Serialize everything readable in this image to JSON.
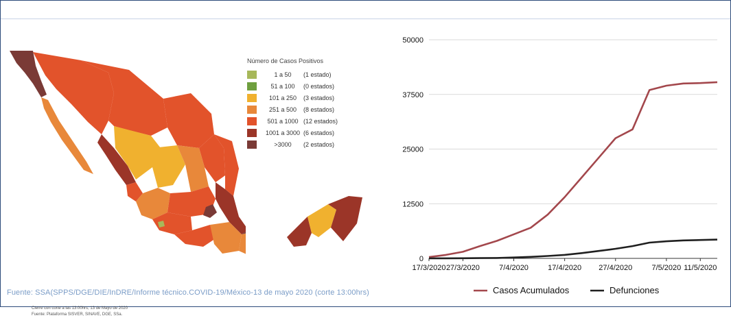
{
  "map": {
    "legend_title": "Número de Casos Positivos",
    "legend": [
      {
        "range": "1 a 50",
        "count": "(1 estado)",
        "color": "#a7b85a"
      },
      {
        "range": "51 a 100",
        "count": "(0 estados)",
        "color": "#6f9f3f"
      },
      {
        "range": "101 a 250",
        "count": "(3 estados)",
        "color": "#f0b12f"
      },
      {
        "range": "251 a 500",
        "count": "(8 estados)",
        "color": "#e8883a"
      },
      {
        "range": "501 a 1000",
        "count": "(12 estados)",
        "color": "#e2532b"
      },
      {
        "range": "1001 a 3000",
        "count": "(6 estados)",
        "color": "#9b3528"
      },
      {
        "range": ">3000",
        "count": "(2 estados)",
        "color": "#7a3a36"
      }
    ],
    "note_cut": "Cierre con corte a las 13:00hrs, 13 de Mayo de 2020",
    "note_source": "Fuente: Plataforma SISVER, SINAVE, DGE, SSa."
  },
  "source_line": "Fuente: SSA(SPPS/DGE/DIE/InDRE/Informe técnico.COVID-19/México-13 de mayo 2020 (corte 13:00hrs)",
  "chart_data": {
    "type": "line",
    "x": [
      "17/3/2020",
      "22/3/2020",
      "27/3/2020",
      "1/4/2020",
      "4/4/2020",
      "7/4/2020",
      "10/4/2020",
      "13/4/2020",
      "17/4/2020",
      "20/4/2020",
      "24/4/2020",
      "27/4/2020",
      "30/4/2020",
      "3/5/2020",
      "7/5/2020",
      "9/5/2020",
      "11/5/2020",
      "13/5/2020"
    ],
    "x_ticks": [
      "17/3/2020",
      "27/3/2020",
      "7/4/2020",
      "17/4/2020",
      "27/4/2020",
      "7/5/2020",
      "11/5/2020"
    ],
    "series": [
      {
        "name": "Casos Acumulados",
        "color": "#a3474c",
        "values": [
          300,
          800,
          1500,
          2800,
          4000,
          5500,
          7000,
          10000,
          14000,
          18500,
          23000,
          27500,
          29500,
          38500,
          39500,
          40000,
          40100,
          40300
        ]
      },
      {
        "name": "Defunciones",
        "color": "#1f1f1f",
        "values": [
          0,
          10,
          30,
          60,
          100,
          200,
          350,
          550,
          800,
          1200,
          1700,
          2200,
          2800,
          3600,
          3900,
          4100,
          4200,
          4300
        ]
      }
    ],
    "yticks": [
      0,
      12500,
      25000,
      37500,
      50000
    ],
    "ylim": [
      0,
      50000
    ],
    "legend_position": "bottom",
    "grid": true
  }
}
